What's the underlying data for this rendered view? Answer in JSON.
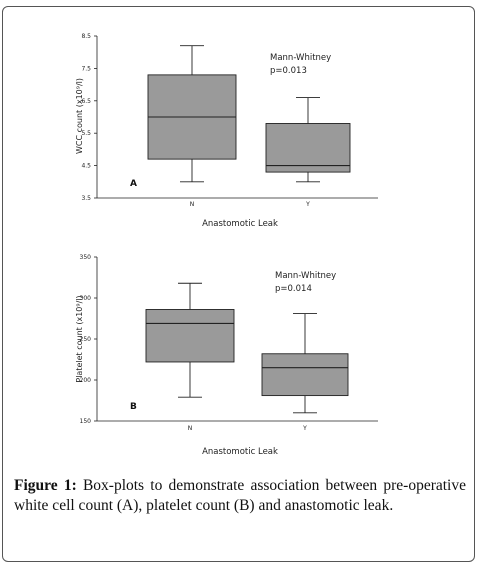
{
  "caption": {
    "label": "Figure 1:",
    "text": "Box-plots to demonstrate association between pre-operative white cell count (A), platelet count (B) and anastomotic leak."
  },
  "colors": {
    "box_fill": "#9a9a9a",
    "stroke": "#222222"
  },
  "chart_data": [
    {
      "type": "box",
      "panel_letter": "A",
      "xlabel": "Anastomotic Leak",
      "ylabel": "WCC count (x10⁹/l)",
      "categories": [
        "N",
        "Y"
      ],
      "ylim": [
        3.5,
        8.5
      ],
      "yticks": [
        "3.5",
        "4.5",
        "5.5",
        "6.5",
        "7.5",
        "8.5"
      ],
      "yvalues": [
        3.5,
        4.5,
        5.5,
        6.5,
        7.5,
        8.5
      ],
      "annotation": [
        "Mann-Whitney",
        "p=0.013"
      ],
      "boxes": [
        {
          "category": "N",
          "min": 4.0,
          "q1": 4.7,
          "median": 6.0,
          "q3": 7.3,
          "max": 8.2
        },
        {
          "category": "Y",
          "min": 4.0,
          "q1": 4.3,
          "median": 4.5,
          "q3": 5.8,
          "max": 6.6
        }
      ]
    },
    {
      "type": "box",
      "panel_letter": "B",
      "xlabel": "Anastomotic Leak",
      "ylabel": "Platelet count (x10⁹/l)",
      "categories": [
        "N",
        "Y"
      ],
      "ylim": [
        150,
        350
      ],
      "yticks": [
        "150",
        "200",
        "250",
        "300",
        "350"
      ],
      "yvalues": [
        150,
        200,
        250,
        300,
        350
      ],
      "annotation": [
        "Mann-Whitney",
        "p=0.014"
      ],
      "boxes": [
        {
          "category": "N",
          "min": 179,
          "q1": 222,
          "median": 269,
          "q3": 286,
          "max": 318
        },
        {
          "category": "Y",
          "min": 160,
          "q1": 181,
          "median": 215,
          "q3": 232,
          "max": 281
        }
      ]
    }
  ]
}
